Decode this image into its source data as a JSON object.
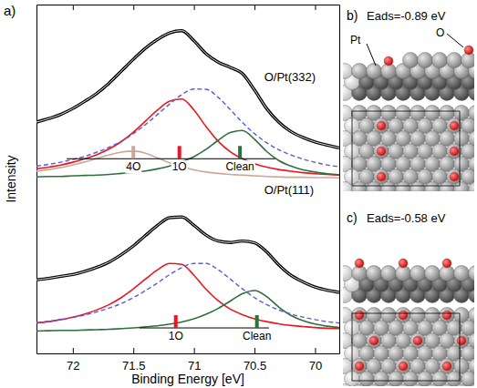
{
  "chart_data": {
    "type": "line",
    "title": "a)",
    "x_label": "Binding Energy [eV]",
    "y_label": "Intensity",
    "xlim": [
      72.3,
      69.8
    ],
    "xticks": [
      72,
      71.5,
      71,
      70.5,
      70
    ],
    "ylim": [
      0,
      100
    ],
    "tick_labels": "x",
    "grid": false,
    "x": [
      72.3,
      72.2,
      72.1,
      72.0,
      71.9,
      71.8,
      71.7,
      71.6,
      71.5,
      71.4,
      71.3,
      71.2,
      71.1,
      71.0,
      70.9,
      70.8,
      70.7,
      70.6,
      70.5,
      70.4,
      70.3,
      70.2,
      70.1,
      70.0,
      69.9,
      69.8
    ],
    "series": [
      {
        "color": "#c8a899",
        "line_style": "solid",
        "values": [
          52.2,
          52.7,
          53.3,
          54.0,
          54.9,
          55.9,
          56.9,
          57.7,
          58.0,
          57.4,
          56.0,
          54.6,
          53.5,
          52.6,
          52.0,
          51.6,
          51.3,
          51.1,
          50.9,
          50.7,
          50.6,
          50.5,
          50.5,
          50.4,
          50.4,
          50.3
        ]
      },
      {
        "color": "#f0141e",
        "line_style": "solid",
        "values": [
          52.9,
          53.4,
          54.0,
          54.8,
          55.8,
          57.0,
          58.6,
          60.7,
          63.4,
          66.6,
          69.8,
          72.3,
          72.9,
          69.8,
          65.0,
          60.8,
          57.8,
          55.8,
          54.4,
          53.4,
          52.7,
          52.2,
          51.8,
          51.5,
          51.3,
          51.1
        ]
      },
      {
        "color": "#2f6f3a",
        "line_style": "solid",
        "values": [
          50.6,
          50.7,
          50.7,
          50.9,
          51.0,
          51.1,
          51.3,
          51.6,
          51.9,
          52.3,
          52.9,
          53.7,
          54.9,
          56.4,
          58.5,
          61.1,
          63.3,
          63.9,
          61.4,
          57.9,
          55.3,
          53.7,
          52.6,
          52.0,
          51.5,
          51.2
        ]
      },
      {
        "color": "#5b5bd6",
        "line_style": "dashed",
        "values": [
          53.7,
          54.2,
          54.8,
          55.6,
          56.5,
          57.7,
          59.1,
          60.8,
          63.0,
          65.6,
          68.5,
          71.5,
          74.2,
          75.8,
          75.7,
          73.4,
          69.9,
          66.2,
          63.0,
          60.4,
          58.4,
          56.9,
          55.7,
          54.8,
          54.0,
          53.5
        ]
      },
      {
        "color": "#000000",
        "line_style": "outlined",
        "values": [
          66.3,
          67.3,
          68.5,
          70.2,
          72.3,
          74.6,
          77.5,
          80.9,
          84.3,
          87.5,
          90.0,
          91.9,
          92.5,
          89.6,
          85.9,
          83.5,
          82.0,
          80.2,
          75.5,
          70.2,
          66.3,
          63.6,
          61.9,
          60.6,
          59.7,
          58.9
        ]
      },
      {
        "color": "#f0141e",
        "line_style": "solid",
        "values": [
          8.7,
          9.1,
          9.7,
          10.4,
          11.3,
          12.5,
          14.0,
          16.0,
          18.5,
          21.3,
          24.0,
          25.8,
          25.5,
          22.4,
          18.4,
          15.1,
          12.7,
          11.1,
          9.9,
          9.1,
          8.5,
          8.0,
          7.7,
          7.4,
          7.2,
          7.1
        ]
      },
      {
        "color": "#2f6f3a",
        "line_style": "solid",
        "values": [
          6.4,
          6.5,
          6.6,
          6.6,
          6.7,
          6.8,
          6.9,
          7.1,
          7.3,
          7.6,
          7.9,
          8.4,
          9.0,
          9.9,
          11.2,
          12.9,
          15.0,
          17.1,
          18.0,
          16.3,
          13.3,
          10.9,
          9.4,
          8.4,
          7.8,
          7.4
        ]
      },
      {
        "color": "#5b5bd6",
        "line_style": "dashed",
        "values": [
          8.8,
          9.2,
          9.7,
          10.3,
          11.0,
          11.9,
          13.0,
          14.3,
          16.0,
          18.0,
          20.2,
          22.6,
          24.6,
          25.8,
          25.8,
          24.0,
          21.3,
          18.5,
          16.0,
          14.0,
          12.5,
          11.3,
          10.4,
          9.7,
          9.1,
          8.7
        ]
      },
      {
        "color": "#000000",
        "line_style": "outlined",
        "values": [
          21.1,
          21.5,
          22.1,
          22.6,
          23.5,
          24.7,
          26.2,
          28.3,
          30.8,
          33.8,
          36.7,
          38.9,
          39.1,
          36.7,
          33.9,
          32.2,
          31.8,
          32.2,
          31.7,
          29.1,
          25.4,
          22.4,
          20.5,
          19.0,
          18.1,
          17.5
        ]
      }
    ],
    "annotations": [
      {
        "text": "O/Pt(332)",
        "x": 70.42,
        "y": 79
      },
      {
        "text": "O/Pt(111)",
        "x": 70.42,
        "y": 46.5
      }
    ],
    "energy_markers": [
      {
        "y": 55.8,
        "span": [
          72.05,
          70.33
        ],
        "items": [
          {
            "label": "4O",
            "x": 71.5,
            "color": "#c8a899"
          },
          {
            "label": "1O",
            "x": 71.12,
            "color": "#f0141e"
          },
          {
            "label": "Clean",
            "x": 70.62,
            "color": "#2f6f3a"
          }
        ]
      },
      {
        "y": 7.3,
        "span": [
          71.45,
          70.38
        ],
        "items": [
          {
            "label": "1O",
            "x": 71.15,
            "color": "#f0141e"
          },
          {
            "label": "Clean",
            "x": 70.48,
            "color": "#2f6f3a"
          }
        ]
      }
    ]
  },
  "structures": [
    {
      "label": "b)",
      "text": "Eads=-0.89 eV",
      "atoms": [
        "Pt",
        "O"
      ]
    },
    {
      "label": "c)",
      "text": "Eads=-0.58 eV"
    }
  ]
}
